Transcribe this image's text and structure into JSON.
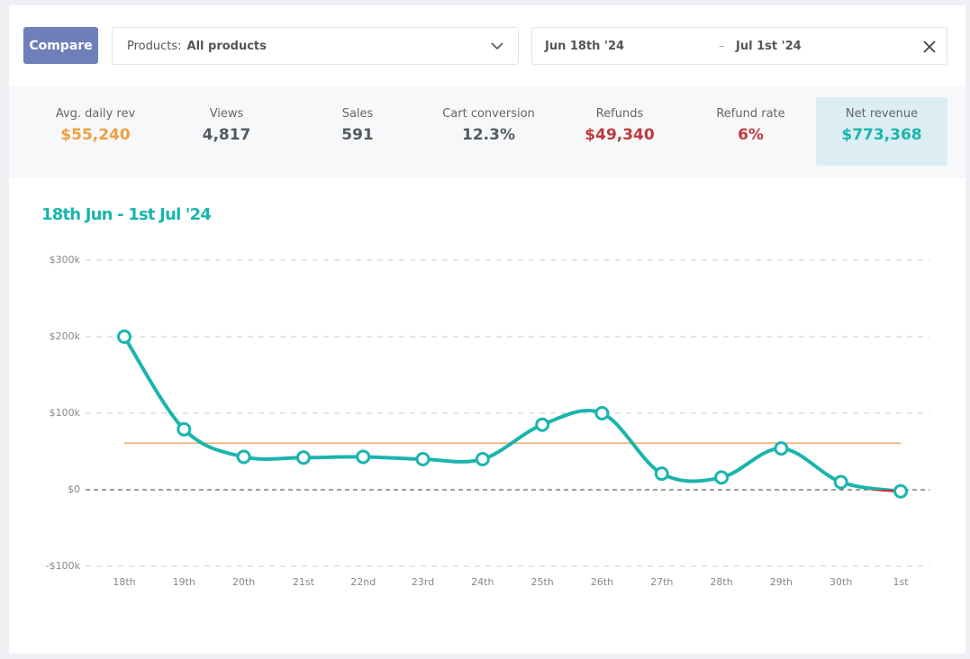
{
  "header": {
    "compare_button": "Compare",
    "products_label": "Products:",
    "products_value": "All products",
    "date_from": "Jun 18th '24",
    "date_separator": "–",
    "date_to": "Jul 1st '24"
  },
  "stats": [
    {
      "label": "Avg. daily rev",
      "value": "$55,240",
      "color": "#f0a040"
    },
    {
      "label": "Views",
      "value": "4,817",
      "color": "#555a60"
    },
    {
      "label": "Sales",
      "value": "591",
      "color": "#555a60"
    },
    {
      "label": "Cart conversion",
      "value": "12.3%",
      "color": "#555a60"
    },
    {
      "label": "Refunds",
      "value": "$49,340",
      "color": "#c0393b"
    },
    {
      "label": "Refund rate",
      "value": "6%",
      "color": "#c0393b"
    },
    {
      "label": "Net revenue",
      "value": "$773,368",
      "color": "#1ab5ad",
      "active": true
    }
  ],
  "chart_data": {
    "type": "line",
    "title": "18th Jun - 1st Jul '24",
    "categories": [
      "18th",
      "19th",
      "20th",
      "21st",
      "22nd",
      "23rd",
      "24th",
      "25th",
      "26th",
      "27th",
      "28th",
      "29th",
      "30th",
      "1st"
    ],
    "series": [
      {
        "color": "#1ab5ad",
        "negative_color": "#c0393b",
        "values": [
          200000,
          79000,
          43000,
          42000,
          43000,
          40000,
          40000,
          85000,
          100000,
          21000,
          16000,
          54000,
          10000,
          -2000
        ]
      }
    ],
    "reference_line": {
      "value": 61000,
      "color": "#f0b070"
    },
    "ylim": [
      -100000,
      300000
    ],
    "yticks": [
      {
        "value": -100000,
        "label": "-$100k"
      },
      {
        "value": 0,
        "label": "$0"
      },
      {
        "value": 100000,
        "label": "$100k"
      },
      {
        "value": 200000,
        "label": "$200k"
      },
      {
        "value": 300000,
        "label": "$300k"
      }
    ],
    "grid": true
  }
}
